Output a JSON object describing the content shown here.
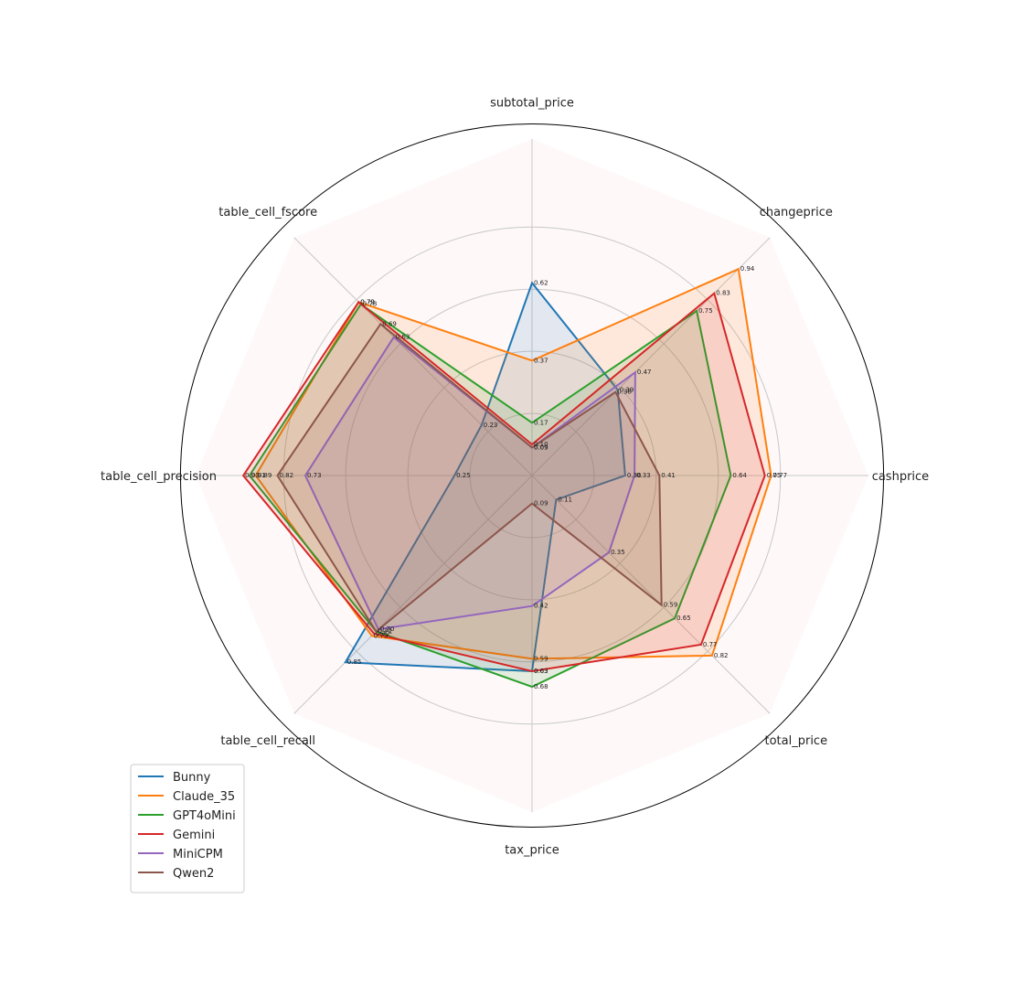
{
  "chart_data": {
    "type": "radar",
    "axes": [
      "cashprice",
      "changeprice",
      "subtotal_price",
      "table_cell_fscore",
      "table_cell_precision",
      "table_cell_recall",
      "tax_price",
      "total_price"
    ],
    "rmax": 1.0,
    "rings": [
      0.2,
      0.4,
      0.6,
      0.8,
      1.0
    ],
    "grid": true,
    "legend_position": "lower-left",
    "series": [
      {
        "name": "Bunny",
        "color": "#1f77b4",
        "values": [
          0.3,
          0.39,
          0.62,
          0.23,
          0.25,
          0.85,
          0.63,
          0.11
        ]
      },
      {
        "name": "Claude_35",
        "color": "#ff7f0e",
        "values": [
          0.77,
          0.94,
          0.37,
          0.79,
          0.89,
          0.73,
          0.59,
          0.82
        ]
      },
      {
        "name": "GPT4oMini",
        "color": "#2ca02c",
        "values": [
          0.64,
          0.75,
          0.17,
          0.78,
          0.91,
          0.71,
          0.68,
          0.65
        ]
      },
      {
        "name": "Gemini",
        "color": "#d62728",
        "values": [
          0.75,
          0.83,
          0.1,
          0.79,
          0.93,
          0.72,
          0.63,
          0.77
        ]
      },
      {
        "name": "MiniCPM",
        "color": "#9467bd",
        "values": [
          0.33,
          0.47,
          0.09,
          0.63,
          0.73,
          0.7,
          0.42,
          0.35
        ]
      },
      {
        "name": "Qwen2",
        "color": "#8c564b",
        "values": [
          0.41,
          0.38,
          0.09,
          0.69,
          0.82,
          0.71,
          0.09,
          0.59
        ]
      }
    ]
  }
}
